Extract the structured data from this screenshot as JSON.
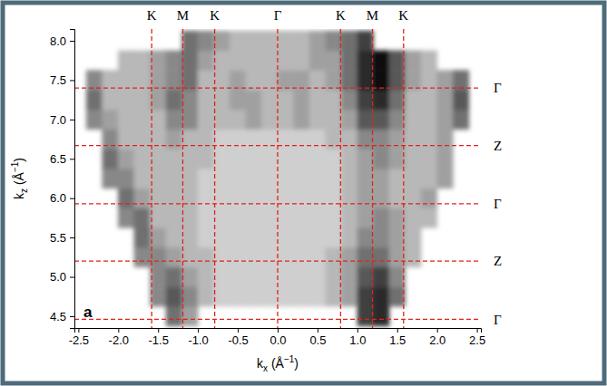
{
  "chart_data": {
    "type": "heatmap",
    "x_label": [
      "k",
      "x",
      " (Å",
      "−1",
      ")"
    ],
    "y_label": [
      "k",
      "z",
      " (Å",
      "−1",
      ")"
    ],
    "panel_label": "a",
    "xlim": [
      -2.55,
      2.55
    ],
    "ylim": [
      4.35,
      8.15
    ],
    "xticks": [
      -2.5,
      {
        "value": -2.0,
        "label": "-2.0"
      },
      -1.5,
      {
        "value": -1.0,
        "label": "-1.0"
      },
      -0.5,
      {
        "value": 0,
        "label": "0.0"
      },
      0.5,
      {
        "value": 1.0,
        "label": "1.0"
      },
      1.5,
      {
        "value": 2.0,
        "label": "2.0"
      },
      2.5
    ],
    "yticks": [
      4.5,
      {
        "value": 5.0,
        "label": "5.0"
      },
      5.5,
      {
        "value": 6.0,
        "label": "6.0"
      },
      6.5,
      {
        "value": 7.0,
        "label": "7.0"
      },
      7.5,
      {
        "value": 8.0,
        "label": "8.0"
      }
    ],
    "zlim": [
      0,
      10
    ],
    "x": [
      -2.5,
      -2.3,
      -2.1,
      -1.9,
      -1.7,
      -1.5,
      -1.3,
      -1.1,
      -0.9,
      -0.7,
      -0.5,
      -0.3,
      -0.1,
      0.1,
      0.3,
      0.5,
      0.7,
      0.9,
      1.1,
      1.3,
      1.5,
      1.7,
      1.9,
      2.1,
      2.3,
      2.5
    ],
    "y": [
      4.5,
      4.75,
      5.0,
      5.25,
      5.5,
      5.75,
      6.0,
      6.25,
      6.5,
      6.75,
      7.0,
      7.25,
      7.5,
      7.75,
      8.0
    ],
    "cells": [
      [
        null,
        null,
        null,
        null,
        null,
        null,
        6,
        4,
        null,
        null,
        null,
        null,
        null,
        null,
        null,
        null,
        null,
        null,
        8,
        9,
        null,
        null,
        null,
        null,
        null,
        null
      ],
      [
        null,
        null,
        null,
        null,
        null,
        5,
        7,
        5,
        3,
        2,
        2,
        2,
        2,
        2,
        2,
        2,
        3,
        4,
        8,
        9,
        6,
        null,
        null,
        null,
        null,
        null
      ],
      [
        null,
        null,
        null,
        null,
        null,
        5,
        6,
        4,
        3,
        2,
        2,
        2,
        2,
        2,
        2,
        2,
        3,
        4,
        7,
        8,
        5,
        null,
        null,
        null,
        null,
        null
      ],
      [
        null,
        null,
        null,
        null,
        5,
        5,
        4,
        3,
        3,
        2,
        2,
        2,
        2,
        2,
        2,
        2,
        3,
        4,
        6,
        6,
        4,
        3,
        null,
        null,
        null,
        null
      ],
      [
        null,
        null,
        null,
        null,
        6,
        4,
        3,
        3,
        2,
        2,
        2,
        2,
        2,
        2,
        2,
        2,
        2,
        3,
        5,
        5,
        4,
        3,
        null,
        null,
        null,
        null
      ],
      [
        null,
        null,
        null,
        5,
        6,
        3,
        3,
        3,
        2,
        2,
        2,
        2,
        2,
        2,
        2,
        2,
        2,
        3,
        4,
        5,
        4,
        3,
        3,
        null,
        null,
        null
      ],
      [
        null,
        null,
        null,
        6,
        4,
        3,
        3,
        3,
        2,
        2,
        2,
        2,
        2,
        2,
        2,
        2,
        2,
        3,
        4,
        4,
        3,
        3,
        4,
        null,
        null,
        null
      ],
      [
        null,
        null,
        5,
        5,
        3,
        3,
        3,
        3,
        2,
        2,
        2,
        2,
        2,
        2,
        2,
        2,
        2,
        3,
        4,
        4,
        3,
        3,
        3,
        4,
        null,
        null
      ],
      [
        null,
        null,
        6,
        4,
        3,
        3,
        3,
        3,
        3,
        2,
        2,
        2,
        2,
        2,
        2,
        2,
        2,
        3,
        4,
        5,
        4,
        3,
        3,
        4,
        null,
        null
      ],
      [
        null,
        null,
        5,
        3,
        3,
        3,
        4,
        3,
        3,
        2,
        2,
        2,
        2,
        2,
        2,
        2,
        3,
        3,
        5,
        5,
        4,
        3,
        3,
        4,
        null,
        null
      ],
      [
        null,
        5,
        4,
        3,
        3,
        3,
        5,
        5,
        3,
        3,
        3,
        4,
        3,
        3,
        4,
        3,
        3,
        4,
        7,
        7,
        5,
        3,
        3,
        4,
        6,
        null
      ],
      [
        null,
        6,
        3,
        3,
        3,
        4,
        6,
        5,
        3,
        3,
        4,
        4,
        3,
        3,
        4,
        3,
        3,
        5,
        8,
        9,
        6,
        3,
        3,
        4,
        7,
        null
      ],
      [
        null,
        5,
        3,
        3,
        3,
        4,
        5,
        6,
        3,
        3,
        4,
        3,
        3,
        4,
        4,
        3,
        4,
        6,
        9,
        10,
        7,
        4,
        3,
        4,
        6,
        null
      ],
      [
        null,
        null,
        null,
        3,
        3,
        4,
        5,
        6,
        4,
        3,
        3,
        3,
        3,
        3,
        3,
        4,
        4,
        6,
        9,
        10,
        7,
        4,
        3,
        null,
        null,
        null
      ],
      [
        null,
        null,
        null,
        null,
        null,
        null,
        null,
        6,
        5,
        4,
        3,
        3,
        3,
        3,
        3,
        4,
        5,
        6,
        8,
        null,
        null,
        null,
        null,
        null,
        null,
        null
      ]
    ],
    "vlines": [
      {
        "value": -1.58,
        "label": "K"
      },
      {
        "value": -1.19,
        "label": "M"
      },
      {
        "value": -0.79,
        "label": "K"
      },
      {
        "value": 0,
        "label": "Γ"
      },
      {
        "value": 0.79,
        "label": "K"
      },
      {
        "value": 1.19,
        "label": "M"
      },
      {
        "value": 1.58,
        "label": "K"
      }
    ],
    "hlines": [
      {
        "value": 7.4,
        "label": "Γ"
      },
      {
        "value": 6.67,
        "label": "Z"
      },
      {
        "value": 5.93,
        "label": "Γ"
      },
      {
        "value": 5.2,
        "label": "Z"
      },
      {
        "value": 4.46,
        "label": "Γ"
      }
    ]
  }
}
